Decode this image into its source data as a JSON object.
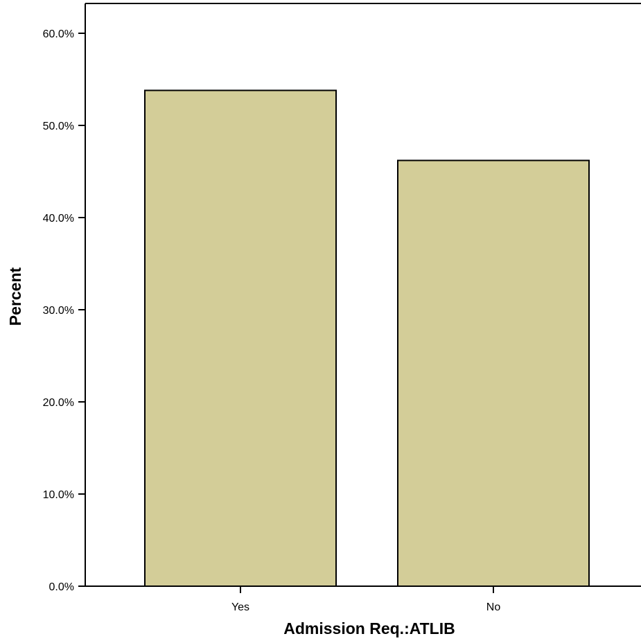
{
  "chart_data": {
    "type": "bar",
    "categories": [
      "Yes",
      "No"
    ],
    "values": [
      53.8,
      46.2
    ],
    "xlabel": "Admission Req.:ATLIB",
    "ylabel": "Percent",
    "ylim": [
      0,
      60
    ],
    "ytick_values": [
      0,
      10,
      20,
      30,
      40,
      50,
      60
    ],
    "ytick_labels": [
      "0.0%",
      "10.0%",
      "20.0%",
      "30.0%",
      "40.0%",
      "50.0%",
      "60.0%"
    ],
    "grid": false,
    "legend": "none",
    "bar_color": "#d3cd98",
    "bar_edge_color": "#000000",
    "axis_color": "#000000"
  }
}
